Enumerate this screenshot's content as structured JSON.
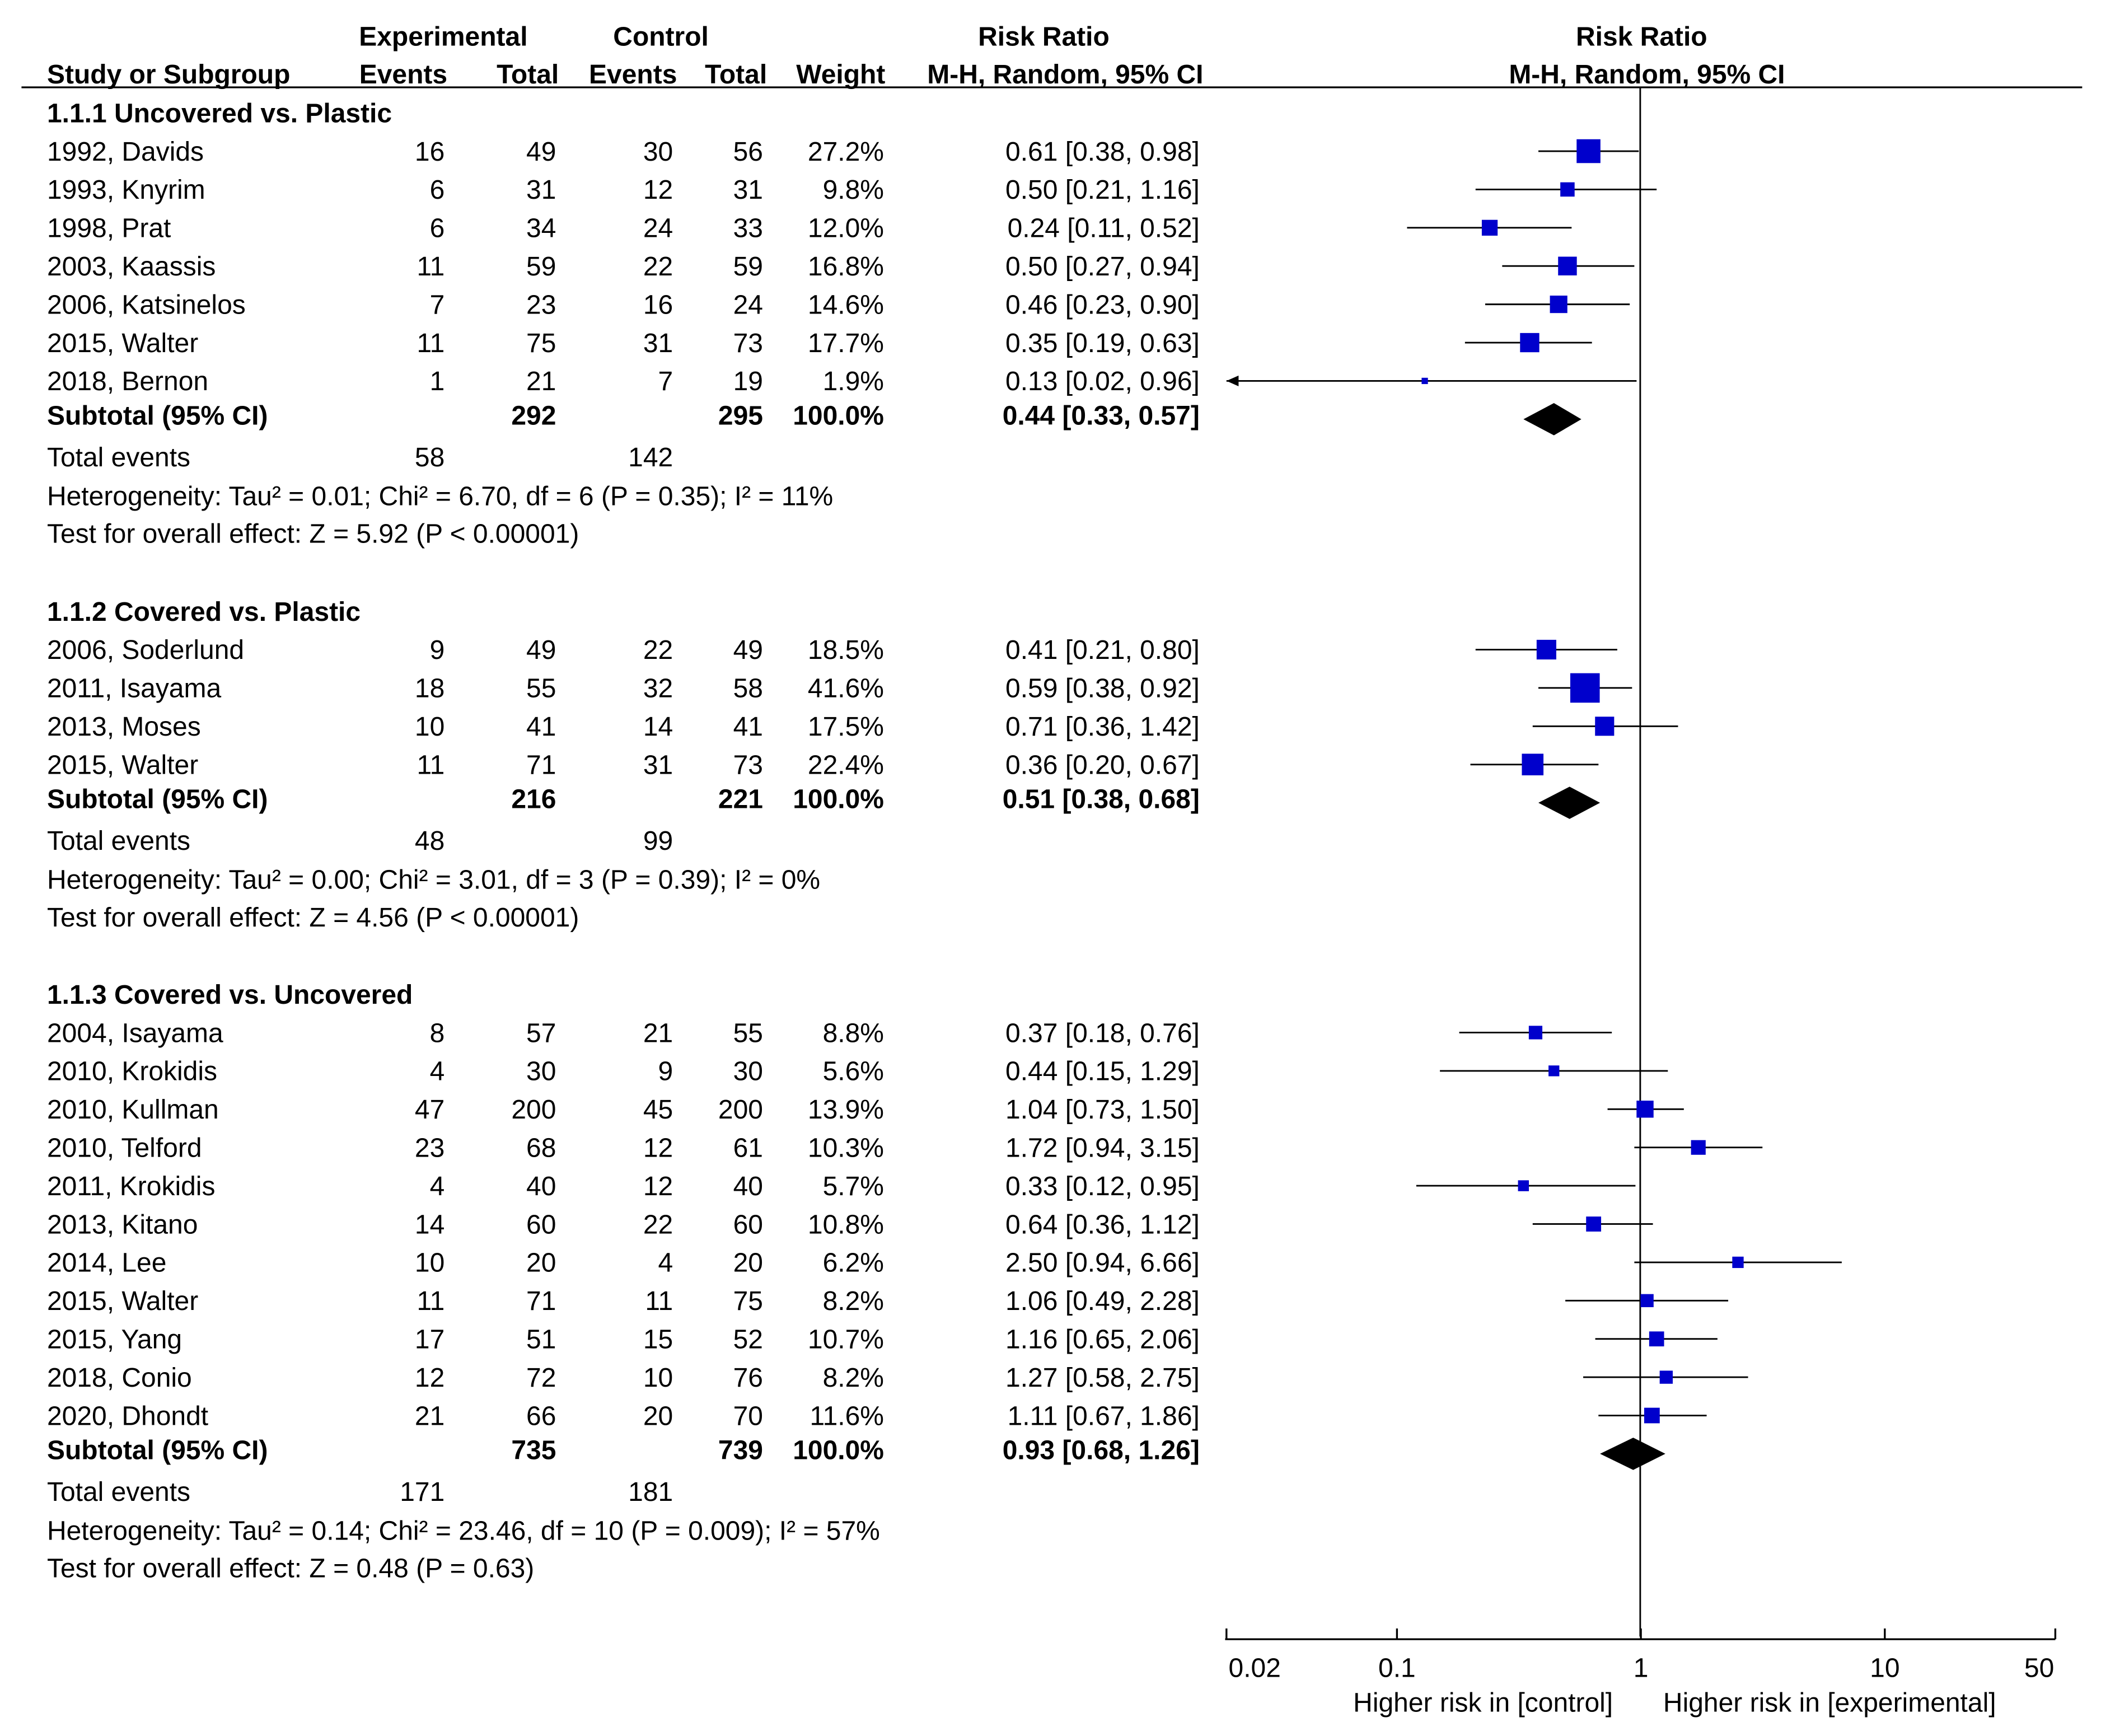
{
  "header": {
    "experimental": "Experimental",
    "control": "Control",
    "risk_ratio": "Risk Ratio",
    "study_or_subgroup": "Study or Subgroup",
    "events": "Events",
    "total": "Total",
    "weight": "Weight",
    "method": "M-H, Random, 95% CI",
    "plot_title": "Risk Ratio",
    "plot_method": "M-H, Random, 95% CI"
  },
  "axis": {
    "ticks": [
      "0.02",
      "0.1",
      "1",
      "10",
      "50"
    ],
    "left_label": "Higher risk in [control]",
    "right_label": "Higher risk in [experimental]"
  },
  "chart_data": {
    "type": "forest",
    "scale": "log",
    "xlim": [
      0.02,
      50
    ],
    "null_line": 1,
    "colors": {
      "study_marker": "#0000cc",
      "summary_marker": "#000000",
      "lines": "#000000"
    },
    "groups": [
      {
        "title": "1.1.1 Uncovered vs. Plastic",
        "studies": [
          {
            "study": "1992, Davids",
            "exp_events": "16",
            "exp_total": "49",
            "ctl_events": "30",
            "ctl_total": "56",
            "weight": "27.2%",
            "ci_text": "0.61 [0.38, 0.98]",
            "rr": 0.61,
            "lo": 0.38,
            "hi": 0.98,
            "w": 27.2
          },
          {
            "study": "1993, Knyrim",
            "exp_events": "6",
            "exp_total": "31",
            "ctl_events": "12",
            "ctl_total": "31",
            "weight": "9.8%",
            "ci_text": "0.50 [0.21, 1.16]",
            "rr": 0.5,
            "lo": 0.21,
            "hi": 1.16,
            "w": 9.8
          },
          {
            "study": "1998, Prat",
            "exp_events": "6",
            "exp_total": "34",
            "ctl_events": "24",
            "ctl_total": "33",
            "weight": "12.0%",
            "ci_text": "0.24 [0.11, 0.52]",
            "rr": 0.24,
            "lo": 0.11,
            "hi": 0.52,
            "w": 12.0
          },
          {
            "study": "2003, Kaassis",
            "exp_events": "11",
            "exp_total": "59",
            "ctl_events": "22",
            "ctl_total": "59",
            "weight": "16.8%",
            "ci_text": "0.50 [0.27, 0.94]",
            "rr": 0.5,
            "lo": 0.27,
            "hi": 0.94,
            "w": 16.8
          },
          {
            "study": "2006, Katsinelos",
            "exp_events": "7",
            "exp_total": "23",
            "ctl_events": "16",
            "ctl_total": "24",
            "weight": "14.6%",
            "ci_text": "0.46 [0.23, 0.90]",
            "rr": 0.46,
            "lo": 0.23,
            "hi": 0.9,
            "w": 14.6
          },
          {
            "study": "2015, Walter",
            "exp_events": "11",
            "exp_total": "75",
            "ctl_events": "31",
            "ctl_total": "73",
            "weight": "17.7%",
            "ci_text": "0.35 [0.19, 0.63]",
            "rr": 0.35,
            "lo": 0.19,
            "hi": 0.63,
            "w": 17.7
          },
          {
            "study": "2018, Bernon",
            "exp_events": "1",
            "exp_total": "21",
            "ctl_events": "7",
            "ctl_total": "19",
            "weight": "1.9%",
            "ci_text": "0.13 [0.02, 0.96]",
            "rr": 0.13,
            "lo": 0.02,
            "hi": 0.96,
            "w": 1.9
          }
        ],
        "subtotal": {
          "label": "Subtotal (95% CI)",
          "exp_total": "292",
          "ctl_total": "295",
          "weight": "100.0%",
          "ci_text": "0.44 [0.33, 0.57]",
          "rr": 0.44,
          "lo": 0.33,
          "hi": 0.57
        },
        "total_events": {
          "label": "Total events",
          "exp": "58",
          "ctl": "142"
        },
        "heterogeneity": "Heterogeneity: Tau² = 0.01; Chi² = 6.70, df = 6 (P = 0.35); I² = 11%",
        "overall": "Test for overall effect: Z = 5.92 (P < 0.00001)"
      },
      {
        "title": "1.1.2 Covered vs. Plastic",
        "studies": [
          {
            "study": "2006, Soderlund",
            "exp_events": "9",
            "exp_total": "49",
            "ctl_events": "22",
            "ctl_total": "49",
            "weight": "18.5%",
            "ci_text": "0.41 [0.21, 0.80]",
            "rr": 0.41,
            "lo": 0.21,
            "hi": 0.8,
            "w": 18.5
          },
          {
            "study": "2011, Isayama",
            "exp_events": "18",
            "exp_total": "55",
            "ctl_events": "32",
            "ctl_total": "58",
            "weight": "41.6%",
            "ci_text": "0.59 [0.38, 0.92]",
            "rr": 0.59,
            "lo": 0.38,
            "hi": 0.92,
            "w": 41.6
          },
          {
            "study": "2013, Moses",
            "exp_events": "10",
            "exp_total": "41",
            "ctl_events": "14",
            "ctl_total": "41",
            "weight": "17.5%",
            "ci_text": "0.71 [0.36, 1.42]",
            "rr": 0.71,
            "lo": 0.36,
            "hi": 1.42,
            "w": 17.5
          },
          {
            "study": "2015, Walter",
            "exp_events": "11",
            "exp_total": "71",
            "ctl_events": "31",
            "ctl_total": "73",
            "weight": "22.4%",
            "ci_text": "0.36 [0.20, 0.67]",
            "rr": 0.36,
            "lo": 0.2,
            "hi": 0.67,
            "w": 22.4
          }
        ],
        "subtotal": {
          "label": "Subtotal (95% CI)",
          "exp_total": "216",
          "ctl_total": "221",
          "weight": "100.0%",
          "ci_text": "0.51 [0.38, 0.68]",
          "rr": 0.51,
          "lo": 0.38,
          "hi": 0.68
        },
        "total_events": {
          "label": "Total events",
          "exp": "48",
          "ctl": "99"
        },
        "heterogeneity": "Heterogeneity: Tau² = 0.00; Chi² = 3.01, df = 3 (P = 0.39); I² = 0%",
        "overall": "Test for overall effect: Z = 4.56 (P < 0.00001)"
      },
      {
        "title": "1.1.3 Covered vs. Uncovered",
        "studies": [
          {
            "study": "2004, Isayama",
            "exp_events": "8",
            "exp_total": "57",
            "ctl_events": "21",
            "ctl_total": "55",
            "weight": "8.8%",
            "ci_text": "0.37 [0.18, 0.76]",
            "rr": 0.37,
            "lo": 0.18,
            "hi": 0.76,
            "w": 8.8
          },
          {
            "study": "2010, Krokidis",
            "exp_events": "4",
            "exp_total": "30",
            "ctl_events": "9",
            "ctl_total": "30",
            "weight": "5.6%",
            "ci_text": "0.44 [0.15, 1.29]",
            "rr": 0.44,
            "lo": 0.15,
            "hi": 1.29,
            "w": 5.6
          },
          {
            "study": "2010, Kullman",
            "exp_events": "47",
            "exp_total": "200",
            "ctl_events": "45",
            "ctl_total": "200",
            "weight": "13.9%",
            "ci_text": "1.04 [0.73, 1.50]",
            "rr": 1.04,
            "lo": 0.73,
            "hi": 1.5,
            "w": 13.9
          },
          {
            "study": "2010, Telford",
            "exp_events": "23",
            "exp_total": "68",
            "ctl_events": "12",
            "ctl_total": "61",
            "weight": "10.3%",
            "ci_text": "1.72 [0.94, 3.15]",
            "rr": 1.72,
            "lo": 0.94,
            "hi": 3.15,
            "w": 10.3
          },
          {
            "study": "2011, Krokidis",
            "exp_events": "4",
            "exp_total": "40",
            "ctl_events": "12",
            "ctl_total": "40",
            "weight": "5.7%",
            "ci_text": "0.33 [0.12, 0.95]",
            "rr": 0.33,
            "lo": 0.12,
            "hi": 0.95,
            "w": 5.7
          },
          {
            "study": "2013, Kitano",
            "exp_events": "14",
            "exp_total": "60",
            "ctl_events": "22",
            "ctl_total": "60",
            "weight": "10.8%",
            "ci_text": "0.64 [0.36, 1.12]",
            "rr": 0.64,
            "lo": 0.36,
            "hi": 1.12,
            "w": 10.8
          },
          {
            "study": "2014, Lee",
            "exp_events": "10",
            "exp_total": "20",
            "ctl_events": "4",
            "ctl_total": "20",
            "weight": "6.2%",
            "ci_text": "2.50 [0.94, 6.66]",
            "rr": 2.5,
            "lo": 0.94,
            "hi": 6.66,
            "w": 6.2
          },
          {
            "study": "2015, Walter",
            "exp_events": "11",
            "exp_total": "71",
            "ctl_events": "11",
            "ctl_total": "75",
            "weight": "8.2%",
            "ci_text": "1.06 [0.49, 2.28]",
            "rr": 1.06,
            "lo": 0.49,
            "hi": 2.28,
            "w": 8.2
          },
          {
            "study": "2015, Yang",
            "exp_events": "17",
            "exp_total": "51",
            "ctl_events": "15",
            "ctl_total": "52",
            "weight": "10.7%",
            "ci_text": "1.16 [0.65, 2.06]",
            "rr": 1.16,
            "lo": 0.65,
            "hi": 2.06,
            "w": 10.7
          },
          {
            "study": "2018, Conio",
            "exp_events": "12",
            "exp_total": "72",
            "ctl_events": "10",
            "ctl_total": "76",
            "weight": "8.2%",
            "ci_text": "1.27 [0.58, 2.75]",
            "rr": 1.27,
            "lo": 0.58,
            "hi": 2.75,
            "w": 8.2
          },
          {
            "study": "2020, Dhondt",
            "exp_events": "21",
            "exp_total": "66",
            "ctl_events": "20",
            "ctl_total": "70",
            "weight": "11.6%",
            "ci_text": "1.11 [0.67, 1.86]",
            "rr": 1.11,
            "lo": 0.67,
            "hi": 1.86,
            "w": 11.6
          }
        ],
        "subtotal": {
          "label": "Subtotal (95% CI)",
          "exp_total": "735",
          "ctl_total": "739",
          "weight": "100.0%",
          "ci_text": "0.93 [0.68, 1.26]",
          "rr": 0.93,
          "lo": 0.68,
          "hi": 1.26
        },
        "total_events": {
          "label": "Total events",
          "exp": "171",
          "ctl": "181"
        },
        "heterogeneity": "Heterogeneity: Tau² = 0.14; Chi² = 23.46, df = 10 (P = 0.009); I² = 57%",
        "overall": "Test for overall effect: Z = 0.48 (P = 0.63)"
      }
    ]
  }
}
